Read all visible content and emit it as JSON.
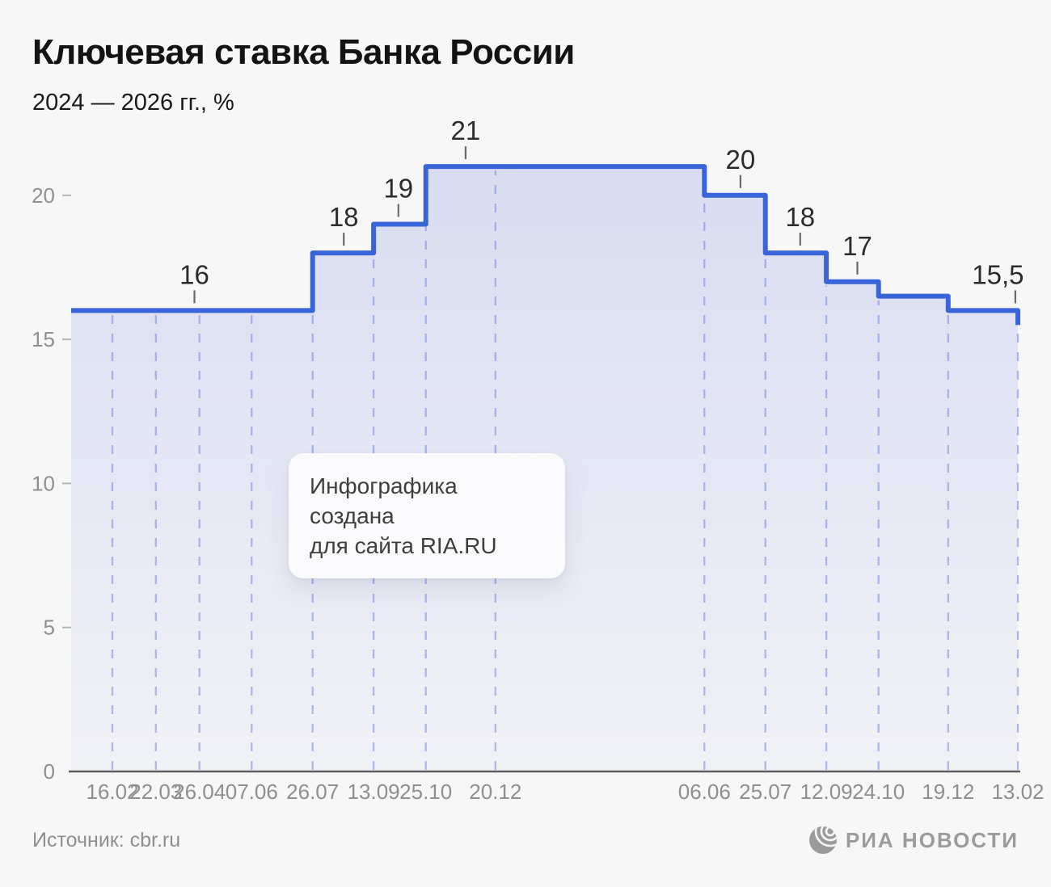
{
  "header": {
    "title": "Ключевая ставка Банка России",
    "subtitle": "2024 — 2026 гг., %"
  },
  "chart_data": {
    "type": "area",
    "variant": "step-after",
    "title": "Ключевая ставка Банка России",
    "subtitle": "2024 — 2026 гг., %",
    "unit": "%",
    "x_type": "time",
    "xlabel": "",
    "ylabel": "",
    "ylim": [
      0,
      22
    ],
    "yticks": [
      0,
      5,
      10,
      15,
      20
    ],
    "grid": "vertical-dashed",
    "legend": "none",
    "start": {
      "day": -35,
      "value": 16
    },
    "points": [
      {
        "date": "16.02",
        "day": 0,
        "value": 16
      },
      {
        "date": "22.03",
        "day": 35,
        "value": 16
      },
      {
        "date": "26.04",
        "day": 70,
        "value": 16
      },
      {
        "date": "07.06",
        "day": 112,
        "value": 16
      },
      {
        "date": "26.07",
        "day": 161,
        "value": 18
      },
      {
        "date": "13.09",
        "day": 210,
        "value": 19
      },
      {
        "date": "25.10",
        "day": 252,
        "value": 21
      },
      {
        "date": "20.12",
        "day": 308,
        "value": 21
      },
      {
        "date": "06.06",
        "day": 476,
        "value": 20
      },
      {
        "date": "25.07",
        "day": 525,
        "value": 18
      },
      {
        "date": "12.09",
        "day": 574,
        "value": 17
      },
      {
        "date": "24.10",
        "day": 616,
        "value": 16.5
      },
      {
        "date": "19.12",
        "day": 672,
        "value": 16
      },
      {
        "date": "13.02",
        "day": 728,
        "value": 15.5
      }
    ],
    "annotations": [
      {
        "text": "16",
        "value": 16,
        "anchor_value": 16,
        "label_day": 66,
        "tick_day": 66
      },
      {
        "text": "18",
        "value": 18,
        "anchor_value": 18,
        "label_day": 186,
        "tick_day": 186
      },
      {
        "text": "19",
        "value": 19,
        "anchor_value": 19,
        "label_day": 230,
        "tick_day": 230
      },
      {
        "text": "21",
        "value": 21,
        "anchor_value": 21,
        "label_day": 284,
        "tick_day": 284
      },
      {
        "text": "20",
        "value": 20,
        "anchor_value": 20,
        "label_day": 505,
        "tick_day": 505
      },
      {
        "text": "18",
        "value": 18,
        "anchor_value": 18,
        "label_day": 553,
        "tick_day": 553
      },
      {
        "text": "17",
        "value": 17,
        "anchor_value": 17,
        "label_day": 599,
        "tick_day": 599
      },
      {
        "text": "15,5",
        "value": 15.5,
        "anchor_value": 16,
        "label_day": 712,
        "tick_day": 726
      }
    ],
    "colors": {
      "line": "#3a64da",
      "fill_top": "rgba(93,114,222,0.20)",
      "fill_bottom": "rgba(93,114,222,0.04)",
      "grid": "#b4b9ec",
      "axis": "#5e5e5e",
      "tick_label": "#8f8f8f",
      "data_label": "#2c2c2c"
    }
  },
  "overlay_note": {
    "line1": "Инфографика создана",
    "line2": "для сайта RIA.RU"
  },
  "footer": {
    "source": "Источник: cbr.ru",
    "logo_text": "РИА НОВОСТИ"
  }
}
